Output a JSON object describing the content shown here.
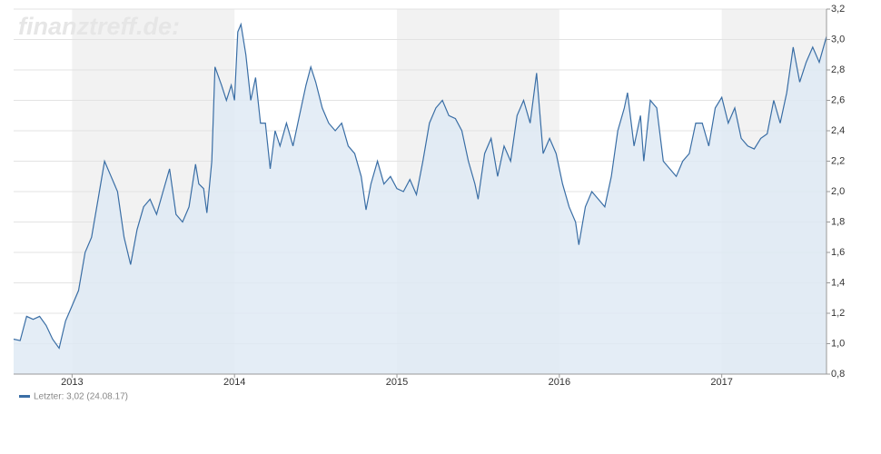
{
  "chart_data": {
    "type": "area",
    "watermark": "finanztreff.de:",
    "x": [
      2012.64,
      2012.68,
      2012.72,
      2012.76,
      2012.8,
      2012.84,
      2012.88,
      2012.92,
      2012.96,
      2013.0,
      2013.04,
      2013.08,
      2013.12,
      2013.16,
      2013.2,
      2013.24,
      2013.28,
      2013.32,
      2013.36,
      2013.4,
      2013.44,
      2013.48,
      2013.52,
      2013.56,
      2013.6,
      2013.64,
      2013.68,
      2013.72,
      2013.76,
      2013.78,
      2013.81,
      2013.83,
      2013.86,
      2013.88,
      2013.92,
      2013.95,
      2013.98,
      2014.0,
      2014.02,
      2014.04,
      2014.07,
      2014.1,
      2014.13,
      2014.16,
      2014.19,
      2014.22,
      2014.25,
      2014.28,
      2014.32,
      2014.36,
      2014.4,
      2014.44,
      2014.47,
      2014.5,
      2014.54,
      2014.58,
      2014.62,
      2014.66,
      2014.7,
      2014.74,
      2014.78,
      2014.81,
      2014.84,
      2014.88,
      2014.92,
      2014.96,
      2015.0,
      2015.04,
      2015.08,
      2015.12,
      2015.16,
      2015.2,
      2015.24,
      2015.28,
      2015.32,
      2015.36,
      2015.4,
      2015.44,
      2015.48,
      2015.5,
      2015.54,
      2015.58,
      2015.62,
      2015.66,
      2015.7,
      2015.74,
      2015.78,
      2015.82,
      2015.86,
      2015.9,
      2015.94,
      2015.98,
      2016.02,
      2016.06,
      2016.1,
      2016.12,
      2016.16,
      2016.2,
      2016.24,
      2016.28,
      2016.32,
      2016.36,
      2016.4,
      2016.42,
      2016.46,
      2016.5,
      2016.52,
      2016.56,
      2016.6,
      2016.64,
      2016.68,
      2016.72,
      2016.76,
      2016.8,
      2016.84,
      2016.88,
      2016.92,
      2016.96,
      2017.0,
      2017.04,
      2017.08,
      2017.12,
      2017.16,
      2017.2,
      2017.24,
      2017.28,
      2017.32,
      2017.36,
      2017.4,
      2017.44,
      2017.48,
      2017.52,
      2017.56,
      2017.6,
      2017.645
    ],
    "series": [
      {
        "name": "Letzter: 3,02 (24.08.17)",
        "color": "#3a6ea5",
        "fill": "#dde8f4",
        "values": [
          1.03,
          1.02,
          1.18,
          1.16,
          1.18,
          1.12,
          1.03,
          0.97,
          1.15,
          1.25,
          1.35,
          1.6,
          1.7,
          1.95,
          2.2,
          2.1,
          2.0,
          1.7,
          1.52,
          1.75,
          1.9,
          1.95,
          1.85,
          2.0,
          2.15,
          1.85,
          1.8,
          1.9,
          2.18,
          2.05,
          2.02,
          1.86,
          2.2,
          2.82,
          2.7,
          2.6,
          2.7,
          2.6,
          3.05,
          3.1,
          2.9,
          2.6,
          2.75,
          2.45,
          2.45,
          2.15,
          2.4,
          2.3,
          2.45,
          2.3,
          2.5,
          2.7,
          2.82,
          2.72,
          2.55,
          2.45,
          2.4,
          2.45,
          2.3,
          2.25,
          2.1,
          1.88,
          2.05,
          2.2,
          2.05,
          2.1,
          2.02,
          2.0,
          2.08,
          1.98,
          2.2,
          2.45,
          2.55,
          2.6,
          2.5,
          2.48,
          2.4,
          2.2,
          2.05,
          1.95,
          2.25,
          2.35,
          2.1,
          2.3,
          2.2,
          2.5,
          2.6,
          2.45,
          2.78,
          2.25,
          2.35,
          2.25,
          2.05,
          1.9,
          1.8,
          1.65,
          1.9,
          2.0,
          1.95,
          1.9,
          2.1,
          2.4,
          2.55,
          2.65,
          2.3,
          2.5,
          2.2,
          2.6,
          2.55,
          2.2,
          2.15,
          2.1,
          2.2,
          2.25,
          2.45,
          2.45,
          2.3,
          2.55,
          2.62,
          2.45,
          2.55,
          2.35,
          2.3,
          2.28,
          2.35,
          2.38,
          2.6,
          2.45,
          2.65,
          2.95,
          2.72,
          2.85,
          2.95,
          2.85,
          3.02
        ]
      }
    ],
    "xlim": [
      2012.64,
      2017.645
    ],
    "xticks": [
      2013,
      2014,
      2015,
      2016,
      2017
    ],
    "ylim": [
      0.8,
      3.2
    ],
    "yticks": [
      {
        "value": 0.8,
        "label": "0,8"
      },
      {
        "value": 1.0,
        "label": "1,0"
      },
      {
        "value": 1.2,
        "label": "1,2"
      },
      {
        "value": 1.4,
        "label": "1,4"
      },
      {
        "value": 1.6,
        "label": "1,6"
      },
      {
        "value": 1.8,
        "label": "1,8"
      },
      {
        "value": 2.0,
        "label": "2,0"
      },
      {
        "value": 2.2,
        "label": "2,2"
      },
      {
        "value": 2.4,
        "label": "2,4"
      },
      {
        "value": 2.6,
        "label": "2,6"
      },
      {
        "value": 2.8,
        "label": "2,8"
      },
      {
        "value": 3.0,
        "label": "3,0"
      },
      {
        "value": 3.2,
        "label": "3,2"
      }
    ],
    "grid": true,
    "year_band_color": "#f2f2f2"
  }
}
